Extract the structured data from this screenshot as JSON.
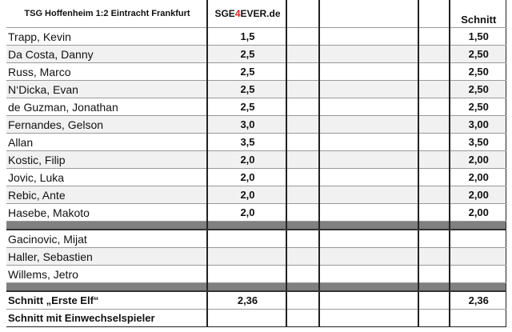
{
  "header": {
    "match": "TSG Hoffenheim 1:2 Eintracht Frankfurt",
    "logo_text": "SGE4EVER.de",
    "logo_parts": [
      "SGE",
      "4",
      "EVER.de"
    ],
    "average_label": "Schnitt"
  },
  "starters": [
    {
      "name": "Trapp, Kevin",
      "rating": "1,5",
      "average": "1,50"
    },
    {
      "name": "Da Costa, Danny",
      "rating": "2,5",
      "average": "2,50"
    },
    {
      "name": "Russ, Marco",
      "rating": "2,5",
      "average": "2,50"
    },
    {
      "name": "N‘Dicka, Evan",
      "rating": "2,5",
      "average": "2,50"
    },
    {
      "name": "de Guzman, Jonathan",
      "rating": "2,5",
      "average": "2,50"
    },
    {
      "name": "Fernandes, Gelson",
      "rating": "3,0",
      "average": "3,00"
    },
    {
      "name": "Allan",
      "rating": "3,5",
      "average": "3,50"
    },
    {
      "name": "Kostic, Filip",
      "rating": "2,0",
      "average": "2,00"
    },
    {
      "name": "Jovic, Luka",
      "rating": "2,0",
      "average": "2,00"
    },
    {
      "name": "Rebic, Ante",
      "rating": "2,0",
      "average": "2,00"
    },
    {
      "name": "Hasebe, Makoto",
      "rating": "2,0",
      "average": "2,00"
    }
  ],
  "substitutes": [
    {
      "name": "Gacinovic, Mijat"
    },
    {
      "name": "Haller, Sebastien"
    },
    {
      "name": "Willems, Jetro"
    }
  ],
  "summary": {
    "first_eleven_label": "Schnitt „Erste Elf“",
    "first_eleven_rating": "2,36",
    "first_eleven_average": "2,36",
    "with_subs_label": "Schnitt mit Einwechselspieler"
  }
}
